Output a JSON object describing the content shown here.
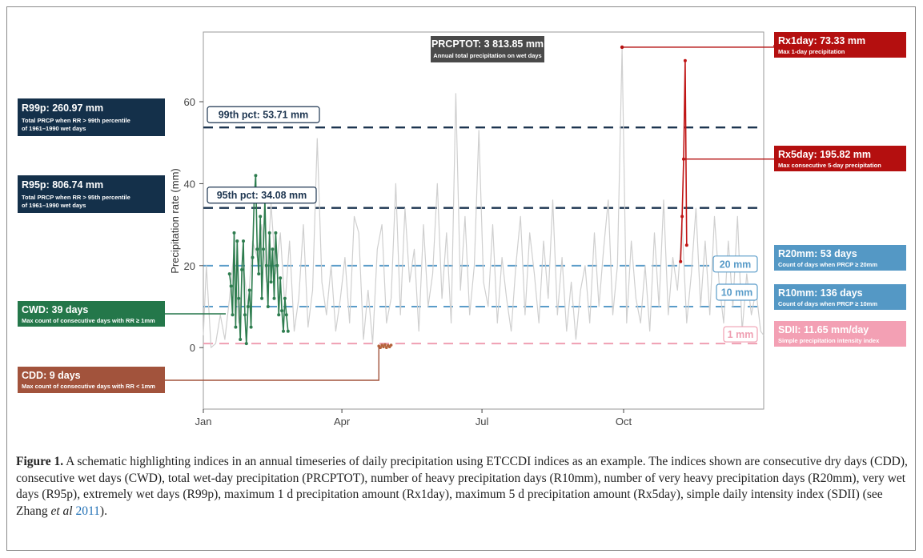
{
  "chart_data": {
    "type": "line",
    "ylabel": "Precipitation rate (mm)",
    "ylim": [
      -15,
      77
    ],
    "y_ticks": [
      0,
      20,
      40,
      60
    ],
    "x_ticks": [
      {
        "label": "Jan",
        "doy": 1
      },
      {
        "label": "Apr",
        "doy": 91
      },
      {
        "label": "Jul",
        "doy": 182
      },
      {
        "label": "Oct",
        "doy": 274
      }
    ],
    "xlim_doy": [
      1,
      365
    ],
    "grid": false,
    "series": [
      {
        "role": "daily precipitation",
        "color": "#cfcfcf",
        "points": [
          [
            1,
            3
          ],
          [
            3,
            20
          ],
          [
            6,
            0
          ],
          [
            9,
            1
          ],
          [
            12,
            8
          ],
          [
            15,
            2
          ],
          [
            18,
            12
          ],
          [
            21,
            24
          ],
          [
            24,
            6
          ],
          [
            27,
            20
          ],
          [
            30,
            10
          ],
          [
            33,
            26
          ],
          [
            36,
            22
          ],
          [
            39,
            30
          ],
          [
            42,
            16
          ],
          [
            45,
            35
          ],
          [
            48,
            18
          ],
          [
            51,
            28
          ],
          [
            54,
            10
          ],
          [
            57,
            26
          ],
          [
            60,
            4
          ],
          [
            63,
            12
          ],
          [
            66,
            30
          ],
          [
            69,
            5
          ],
          [
            72,
            14
          ],
          [
            75,
            51
          ],
          [
            78,
            16
          ],
          [
            81,
            8
          ],
          [
            84,
            20
          ],
          [
            87,
            4
          ],
          [
            90,
            12
          ],
          [
            93,
            22
          ],
          [
            96,
            6
          ],
          [
            99,
            32
          ],
          [
            102,
            28
          ],
          [
            105,
            2
          ],
          [
            108,
            14
          ],
          [
            111,
            1
          ],
          [
            114,
            24
          ],
          [
            117,
            30
          ],
          [
            120,
            6
          ],
          [
            123,
            12
          ],
          [
            126,
            40
          ],
          [
            129,
            8
          ],
          [
            132,
            34
          ],
          [
            135,
            16
          ],
          [
            138,
            24
          ],
          [
            141,
            4
          ],
          [
            144,
            30
          ],
          [
            147,
            10
          ],
          [
            150,
            18
          ],
          [
            153,
            40
          ],
          [
            156,
            12
          ],
          [
            159,
            28
          ],
          [
            162,
            6
          ],
          [
            165,
            62
          ],
          [
            168,
            14
          ],
          [
            171,
            32
          ],
          [
            174,
            8
          ],
          [
            177,
            20
          ],
          [
            180,
            53
          ],
          [
            183,
            16
          ],
          [
            186,
            10
          ],
          [
            189,
            30
          ],
          [
            192,
            6
          ],
          [
            195,
            22
          ],
          [
            198,
            12
          ],
          [
            201,
            4
          ],
          [
            204,
            20
          ],
          [
            207,
            32
          ],
          [
            210,
            8
          ],
          [
            213,
            28
          ],
          [
            216,
            18
          ],
          [
            219,
            6
          ],
          [
            222,
            26
          ],
          [
            225,
            12
          ],
          [
            228,
            36
          ],
          [
            231,
            8
          ],
          [
            234,
            22
          ],
          [
            237,
            4
          ],
          [
            240,
            16
          ],
          [
            243,
            2
          ],
          [
            246,
            14
          ],
          [
            249,
            20
          ],
          [
            252,
            6
          ],
          [
            255,
            28
          ],
          [
            258,
            10
          ],
          [
            261,
            24
          ],
          [
            264,
            36
          ],
          [
            267,
            8
          ],
          [
            270,
            20
          ],
          [
            273,
            73
          ],
          [
            276,
            6
          ],
          [
            279,
            26
          ],
          [
            282,
            12
          ],
          [
            285,
            6
          ],
          [
            288,
            20
          ],
          [
            291,
            4
          ],
          [
            294,
            28
          ],
          [
            297,
            10
          ],
          [
            300,
            36
          ],
          [
            303,
            8
          ],
          [
            306,
            22
          ],
          [
            309,
            14
          ],
          [
            312,
            30
          ],
          [
            315,
            6
          ],
          [
            318,
            18
          ],
          [
            321,
            34
          ],
          [
            324,
            10
          ],
          [
            327,
            26
          ],
          [
            330,
            8
          ],
          [
            333,
            32
          ],
          [
            336,
            16
          ],
          [
            339,
            6
          ],
          [
            342,
            26
          ],
          [
            345,
            10
          ],
          [
            348,
            32
          ],
          [
            351,
            4
          ],
          [
            354,
            18
          ],
          [
            357,
            8
          ],
          [
            360,
            14
          ],
          [
            363,
            4
          ],
          [
            365,
            3
          ]
        ]
      },
      {
        "role": "CWD spell",
        "color": "#2e7d4f",
        "points": [
          [
            18,
            18
          ],
          [
            19,
            15
          ],
          [
            20,
            8
          ],
          [
            21,
            28
          ],
          [
            22,
            5
          ],
          [
            23,
            26
          ],
          [
            24,
            12
          ],
          [
            25,
            2
          ],
          [
            26,
            19
          ],
          [
            27,
            26
          ],
          [
            28,
            8
          ],
          [
            29,
            1
          ],
          [
            30,
            10
          ],
          [
            31,
            14
          ],
          [
            32,
            5
          ],
          [
            33,
            22
          ],
          [
            34,
            36
          ],
          [
            35,
            42
          ],
          [
            36,
            24
          ],
          [
            37,
            18
          ],
          [
            38,
            32
          ],
          [
            39,
            12
          ],
          [
            40,
            24
          ],
          [
            41,
            36
          ],
          [
            42,
            20
          ],
          [
            43,
            10
          ],
          [
            44,
            28
          ],
          [
            45,
            16
          ],
          [
            46,
            24
          ],
          [
            47,
            12
          ],
          [
            48,
            28
          ],
          [
            49,
            20
          ],
          [
            50,
            8
          ],
          [
            51,
            17
          ],
          [
            52,
            9
          ],
          [
            53,
            4
          ],
          [
            54,
            12
          ],
          [
            55,
            8
          ],
          [
            56,
            4
          ]
        ]
      },
      {
        "role": "CDD spell",
        "color": "#b5633c",
        "points": [
          [
            115,
            0.4
          ],
          [
            116,
            0
          ],
          [
            117,
            0.6
          ],
          [
            118,
            0.2
          ],
          [
            119,
            0.7
          ],
          [
            120,
            0
          ],
          [
            121,
            0.5
          ],
          [
            122,
            0.2
          ],
          [
            123,
            0.6
          ]
        ]
      },
      {
        "role": "Rx5day",
        "color": "#c01515",
        "points": [
          [
            311,
            21
          ],
          [
            312,
            32
          ],
          [
            313,
            46
          ],
          [
            314,
            70
          ],
          [
            315,
            25
          ]
        ]
      }
    ],
    "reference_lines": [
      {
        "name": "99th pct",
        "value": 53.71,
        "color": "#1d3550",
        "label": "99th pct:  53.71 mm"
      },
      {
        "name": "95th pct",
        "value": 34.08,
        "color": "#1d3550",
        "label": "95th pct:  34.08 mm"
      },
      {
        "name": "20 mm",
        "value": 20,
        "color": "#5a9cc9",
        "label": "20 mm"
      },
      {
        "name": "10 mm",
        "value": 10,
        "color": "#5a9cc9",
        "label": "10 mm"
      },
      {
        "name": "1 mm",
        "value": 1,
        "color": "#ef9fb2",
        "label": "1 mm"
      }
    ],
    "annotations": {
      "prcptot": {
        "title": "PRCPTOT: 3 813.85 mm",
        "subtitle": "Annual total precipitation on wet days",
        "color": "#4a4a4a"
      },
      "r99p": {
        "title": "R99p: 260.97 mm",
        "subtitle1": "Total PRCP when RR > 99th percentile",
        "subtitle2": "of 1961–1990 wet days",
        "color": "#14304a"
      },
      "r95p": {
        "title": "R95p: 806.74 mm",
        "subtitle1": "Total PRCP when RR > 95th percentile",
        "subtitle2": "of 1961–1990 wet days",
        "color": "#14304a"
      },
      "cwd": {
        "title": "CWD: 39 days",
        "subtitle": "Max count of consecutive days with RR ≥ 1mm",
        "color": "#24774a"
      },
      "cdd": {
        "title": "CDD: 9 days",
        "subtitle": "Max count of consecutive days with RR < 1mm",
        "color": "#a2533c"
      },
      "rx1day": {
        "title": "Rx1day: 73.33 mm",
        "subtitle": "Max 1-day precipitation",
        "color": "#b40f0f"
      },
      "rx5day": {
        "title": "Rx5day: 195.82 mm",
        "subtitle": "Max consecutive 5-day precipitation",
        "color": "#b40f0f"
      },
      "r20mm": {
        "title": "R20mm: 53 days",
        "subtitle": "Count of days when PRCP ≥ 20mm",
        "color": "#5498c5"
      },
      "r10mm": {
        "title": "R10mm: 136 days",
        "subtitle": "Count of days when PRCP ≥ 10mm",
        "color": "#5498c5"
      },
      "sdii": {
        "title": "SDII: 11.65 mm/day",
        "subtitle": "Simple precipitation intensity index",
        "color": "#f3a0b4"
      }
    }
  },
  "caption": {
    "label": "Figure 1.",
    "text_1": " A schematic highlighting indices in an annual timeseries of daily precipitation using ETCCDI indices as an example. The indices shown are consecutive dry days (CDD), consecutive wet days (CWD), total wet-day precipitation (PRCPTOT), number of heavy precipitation days (R10mm), number of very heavy precipitation days (R20mm), very wet days (R95p), extremely wet days (R99p), maximum 1 d precipitation amount (Rx1day), maximum 5 d precipitation amount (Rx5day), simple daily intensity index (SDII) (see Zhang ",
    "etal": "et al",
    "text_2": " ",
    "year": "2011",
    "text_3": ")."
  }
}
